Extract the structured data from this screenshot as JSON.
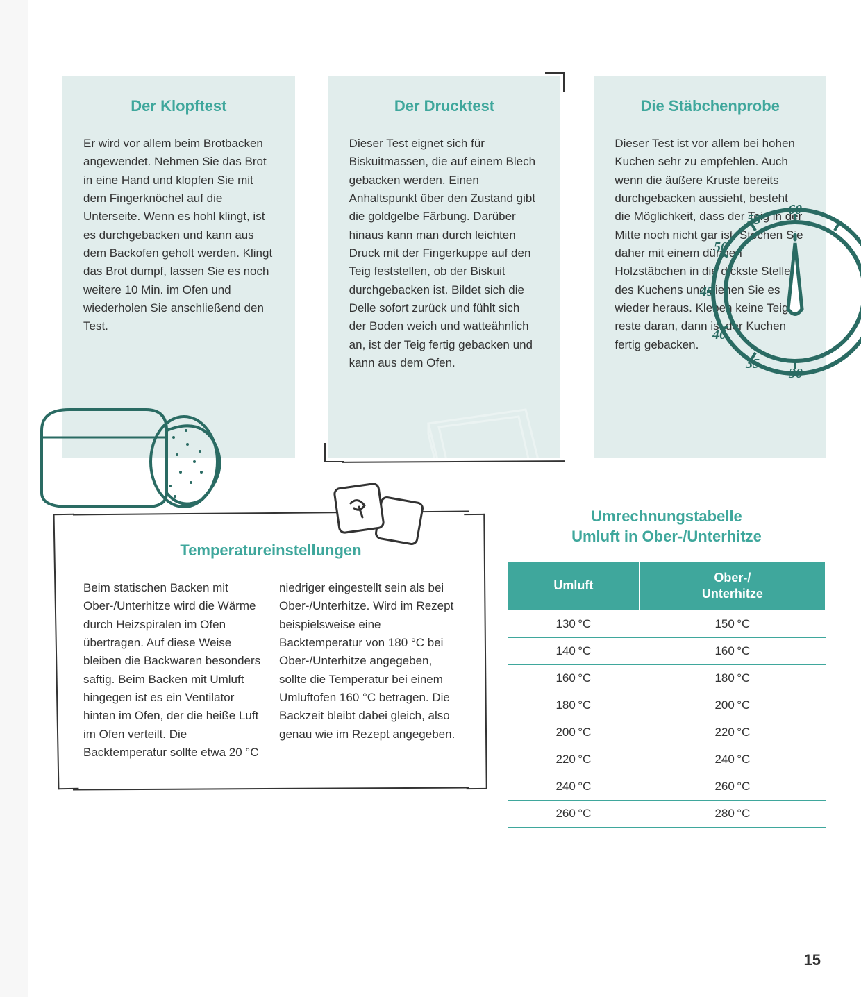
{
  "colors": {
    "accent": "#3fa79c",
    "card_bg": "#e1edec",
    "text": "#333333",
    "page_bg": "#ffffff",
    "outer_bg": "#f7f7f7",
    "line": "#333333"
  },
  "typography": {
    "heading_fontsize_pt": 16,
    "body_fontsize_pt": 12,
    "heading_weight": 700,
    "body_lineheight": 1.55
  },
  "cards": [
    {
      "title": "Der Klopftest",
      "body": "Er wird vor allem beim Brot­backen angewendet. Nehmen Sie das Brot in eine Hand und klopfen Sie mit dem Finger­knöchel auf die Unterseite. Wenn es hohl klingt, ist es durchgebacken und kann aus dem Backofen geholt werden. Klingt das Brot dumpf, lassen Sie es noch weitere 10 Min. im Ofen und wiederholen Sie anschließend den Test.",
      "illustration": "bread-loaf-sketch"
    },
    {
      "title": "Der Drucktest",
      "body": "Dieser Test eignet sich für Biskuitmassen, die auf einem Blech gebacken werden. Einen Anhaltspunkt über den Zustand gibt die goldgelbe Färbung. Darüber hinaus kann man durch leichten Druck mit der Fingerkuppe auf den Teig feststellen, ob der Biskuit durchgebacken ist. Bildet sich die Delle sofort zurück und fühlt sich der Boden weich und watte­ähnlich an, ist der Teig fertig gebacken und kann aus dem Ofen.",
      "illustration": "baking-tray-sketch"
    },
    {
      "title": "Die Stäbchenprobe",
      "body": "Dieser Test ist vor allem bei hohen Kuchen sehr zu empfehlen. Auch wenn die äuße­re Kruste bereits durchgebacken aussieht, besteht die Möglichkeit, dass der Teig in der Mitte noch nicht gar ist. Stechen Sie daher mit einem dünnen Holzstäbchen in die dickste Stelle des Kuchens und ziehen Sie es wieder heraus. Kleben keine Teig­reste daran, dann ist der Kuchen fertig gebacken.",
      "illustration": "kitchen-timer-dial-sketch"
    }
  ],
  "temperature_section": {
    "title": "Temperatureinstellungen",
    "body": "Beim statischen Backen mit Ober-/Unterhitze wird die Wärme durch Heizspiralen im Ofen übertragen. Auf diese Weise bleiben die Backwa­ren besonders saftig. Beim Backen mit Umluft hingegen ist es ein Ventilator hinten im Ofen, der die heiße Luft im Ofen verteilt. Die Backtemperatur sollte etwa 20 °C niedriger eingestellt sein als bei Ober-/Unterhitze. Wird im Rezept beispielsweise eine Backtemperatur von 180 °C bei Ober-/Unterhitze angegeben, sollte die Temperatur bei einem Umluftofen 160 °C be­tragen. Die Backzeit bleibt dabei gleich, also genau wie im Rezept angegeben.",
    "illustration": "sticky-notes-sketch"
  },
  "conversion_table": {
    "title_line1": "Umrechnungstabelle",
    "title_line2": "Umluft in Ober-/Unterhitze",
    "columns": [
      "Umluft",
      "Ober-/\nUnterhitze"
    ],
    "unit": "°C",
    "rows": [
      [
        130,
        150
      ],
      [
        140,
        160
      ],
      [
        160,
        180
      ],
      [
        180,
        200
      ],
      [
        200,
        220
      ],
      [
        220,
        240
      ],
      [
        240,
        260
      ],
      [
        260,
        280
      ]
    ],
    "header_bg": "#3fa79c",
    "header_text_color": "#ffffff",
    "row_border_color": "#3fa79c"
  },
  "timer_dial": {
    "tick_labels": [
      "30",
      "35",
      "40",
      "45",
      "50",
      "55",
      "60"
    ],
    "stroke": "#2a6b63"
  },
  "page_number": "15"
}
